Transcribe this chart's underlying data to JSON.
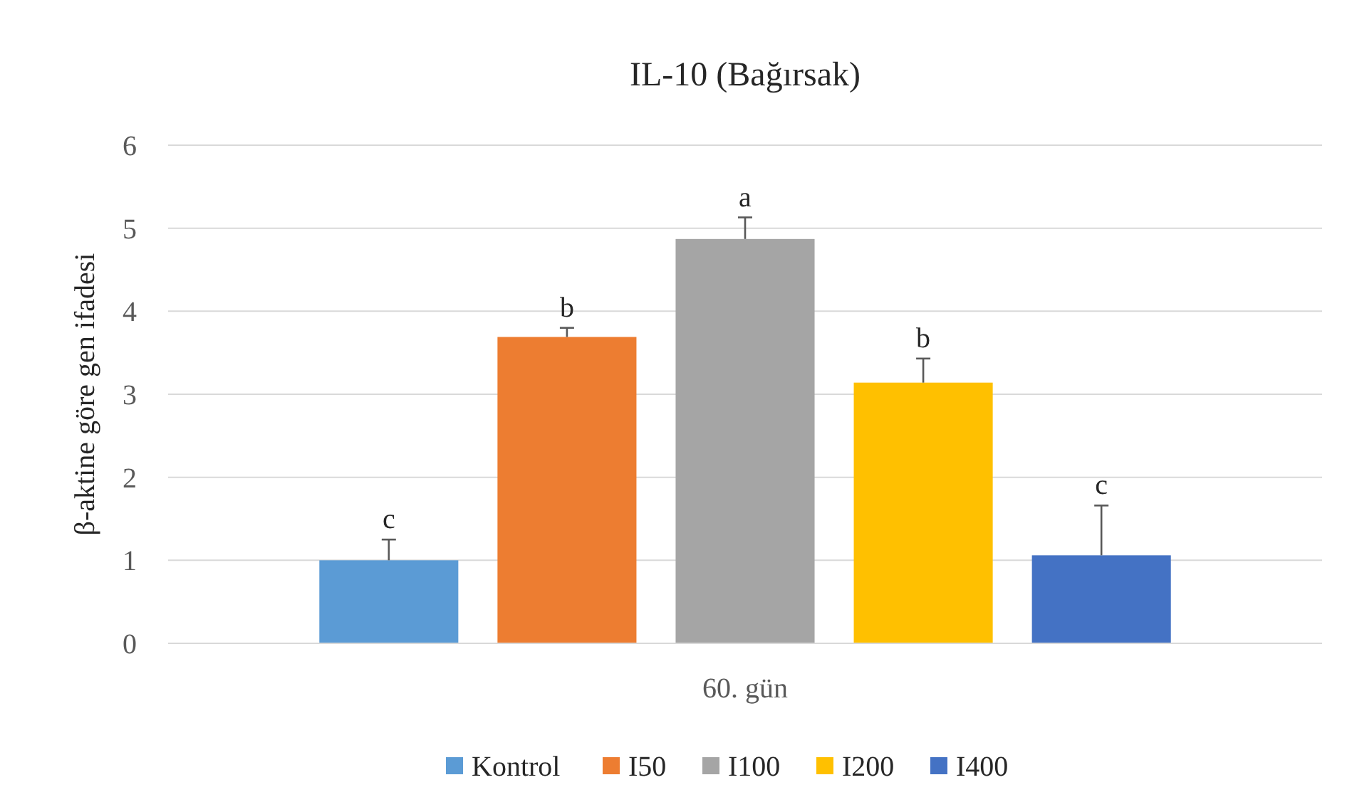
{
  "chart_data": {
    "type": "bar",
    "title": "IL-10 (Bağırsak)",
    "ylabel": "β-aktine göre gen ifadesi",
    "categories": [
      "60. gün"
    ],
    "series": [
      {
        "name": "Kontrol",
        "color": "#5b9bd5",
        "values": [
          1.0
        ],
        "errors": [
          [
            1.0,
            1.25
          ]
        ],
        "value_labels": [
          "c"
        ]
      },
      {
        "name": "I50",
        "color": "#ed7d31",
        "values": [
          3.69
        ],
        "errors": [
          [
            3.69,
            3.8
          ]
        ],
        "value_labels": [
          "b"
        ]
      },
      {
        "name": "I100",
        "color": "#a5a5a5",
        "values": [
          4.87
        ],
        "errors": [
          [
            4.87,
            5.13
          ]
        ],
        "value_labels": [
          "a"
        ]
      },
      {
        "name": "I200",
        "color": "#ffc000",
        "values": [
          3.14
        ],
        "errors": [
          [
            3.14,
            3.43
          ]
        ],
        "value_labels": [
          "b"
        ]
      },
      {
        "name": "I400",
        "color": "#4472c4",
        "values": [
          1.06
        ],
        "errors": [
          [
            1.06,
            1.66
          ]
        ],
        "value_labels": [
          "c"
        ]
      }
    ],
    "ylim": [
      0,
      6
    ],
    "yticks": [
      0,
      1,
      2,
      3,
      4,
      5,
      6
    ],
    "grid": "y",
    "legend": "bottom"
  }
}
